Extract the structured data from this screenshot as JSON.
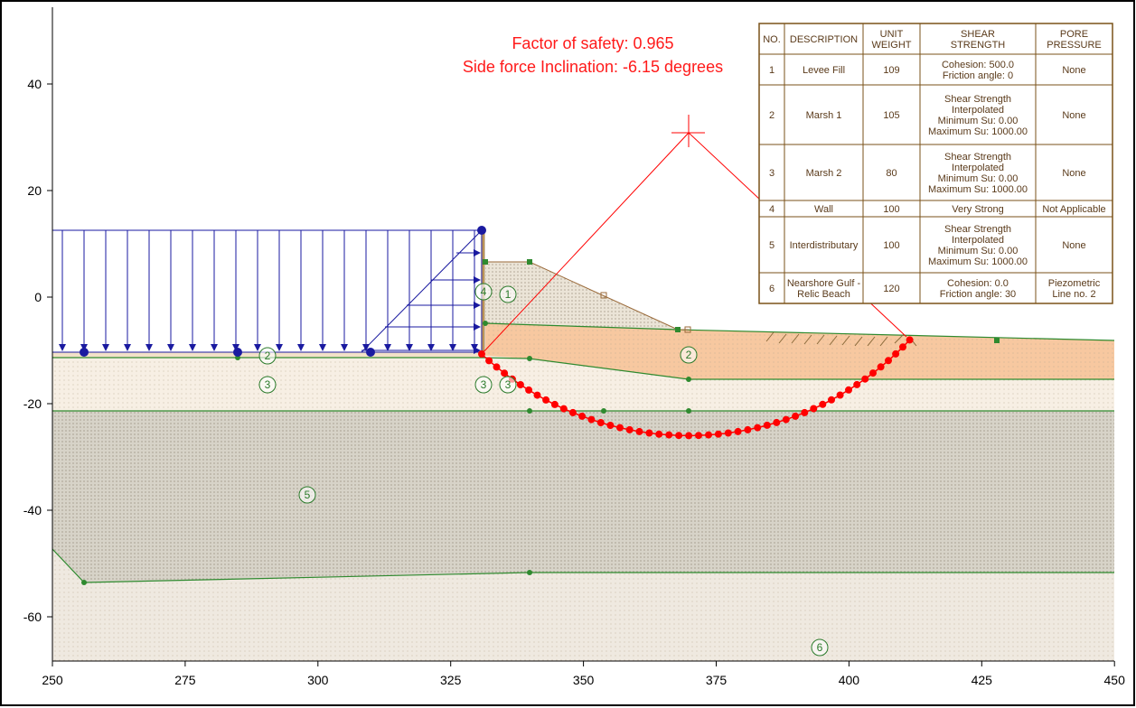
{
  "title_lines": {
    "fos": "Factor of safety: 0.965",
    "inclination": "Side force Inclination: -6.15 degrees"
  },
  "colors": {
    "text_red": "#ff1a1a",
    "slip": "#ff0000",
    "load": "#1a1aa0",
    "boundary": "#2f8a2f",
    "marsh1_fill": "#f7c9a2",
    "levee_fill": "#ece4d8",
    "interdist_fill": "#d6d2c6",
    "marsh2_fill": "#f6efe4",
    "gulf_fill": "#ede8e0",
    "table_border": "#7a5218"
  },
  "axes": {
    "x_ticks": [
      "250",
      "275",
      "300",
      "325",
      "350",
      "375",
      "400",
      "425",
      "450"
    ],
    "y_ticks": [
      "40",
      "20",
      "0",
      "-20",
      "-40",
      "-60"
    ]
  },
  "soil_labels": {
    "levee": "1",
    "marsh1_left": "2",
    "marsh1_right": "2",
    "marsh2_left": "3",
    "marsh2_mid_a": "3",
    "marsh2_mid_b": "3",
    "wall": "4",
    "interdist": "5",
    "gulf": "6"
  },
  "table": {
    "headers": {
      "no": "NO.",
      "description": "DESCRIPTION",
      "unit_weight": [
        "UNIT",
        "WEIGHT"
      ],
      "shear": [
        "SHEAR",
        "STRENGTH"
      ],
      "pore": [
        "PORE",
        "PRESSURE"
      ]
    },
    "rows": [
      {
        "no": "1",
        "desc": [
          "Levee Fill"
        ],
        "uw": "109",
        "shear": [
          "Cohesion: 500.0",
          "Friction angle: 0"
        ],
        "pore": [
          "None"
        ]
      },
      {
        "no": "2",
        "desc": [
          "Marsh 1"
        ],
        "uw": "105",
        "shear": [
          "Shear Strength",
          "Interpolated",
          "Minimum Su: 0.00",
          "Maximum Su: 1000.00"
        ],
        "pore": [
          "None"
        ]
      },
      {
        "no": "3",
        "desc": [
          "Marsh 2"
        ],
        "uw": "80",
        "shear": [
          "Shear Strength",
          "Interpolated",
          "Minimum Su: 0.00",
          "Maximum Su: 1000.00"
        ],
        "pore": [
          "None"
        ]
      },
      {
        "no": "4",
        "desc": [
          "Wall"
        ],
        "uw": "100",
        "shear": [
          "Very Strong"
        ],
        "pore": [
          "Not Applicable"
        ]
      },
      {
        "no": "5",
        "desc": [
          "Interdistributary"
        ],
        "uw": "100",
        "shear": [
          "Shear Strength",
          "Interpolated",
          "Minimum Su: 0.00",
          "Maximum Su: 1000.00"
        ],
        "pore": [
          "None"
        ]
      },
      {
        "no": "6",
        "desc": [
          "Nearshore Gulf -",
          "Relic Beach"
        ],
        "uw": "120",
        "shear": [
          "Cohesion: 0.0",
          "Friction angle: 30"
        ],
        "pore": [
          "Piezometric",
          "Line no. 2"
        ]
      }
    ]
  }
}
